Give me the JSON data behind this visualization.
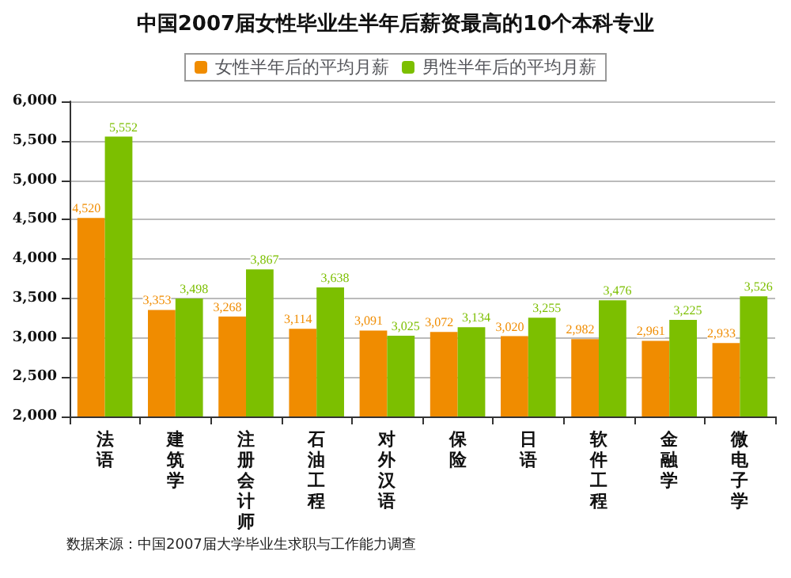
{
  "chart_data": {
    "type": "bar",
    "title": "中国2007届女性毕业生半年后薪资最高的10个本科专业",
    "categories": [
      "法语",
      "建筑学",
      "注册会计师",
      "石油工程",
      "对外汉语",
      "保险",
      "日语",
      "软件工程",
      "金融学",
      "微电子学"
    ],
    "series": [
      {
        "name": "女性半年后的平均月薪",
        "color": "#f08c00",
        "values": [
          4520,
          3353,
          3268,
          3114,
          3091,
          3072,
          3020,
          2982,
          2961,
          2933
        ],
        "value_labels": [
          "4,520",
          "3,353",
          "3,268",
          "3,114",
          "3,091",
          "3,072",
          "3,020",
          "2,982",
          "2,961",
          "2,933"
        ]
      },
      {
        "name": "男性半年后的平均月薪",
        "color": "#7cbf00",
        "values": [
          5552,
          3498,
          3867,
          3638,
          3025,
          3134,
          3255,
          3476,
          3225,
          3526
        ],
        "value_labels": [
          "5,552",
          "3,498",
          "3,867",
          "3,638",
          "3,025",
          "3,134",
          "3,255",
          "3,476",
          "3,225",
          "3,526"
        ]
      }
    ],
    "ylim": [
      2000,
      6000
    ],
    "yticks": [
      {
        "value": 2000,
        "label": "2,000"
      },
      {
        "value": 2500,
        "label": "2,500"
      },
      {
        "value": 3000,
        "label": "3,000"
      },
      {
        "value": 3500,
        "label": "3,500"
      },
      {
        "value": 4000,
        "label": "4,000"
      },
      {
        "value": 4500,
        "label": "4,500"
      },
      {
        "value": 5000,
        "label": "5,000"
      },
      {
        "value": 5500,
        "label": "5,500"
      },
      {
        "value": 6000,
        "label": "6,000"
      }
    ],
    "grid": "y",
    "legend": "top",
    "annotations": [
      "数据来源：中国2007届大学毕业生求职与工作能力调查"
    ]
  }
}
